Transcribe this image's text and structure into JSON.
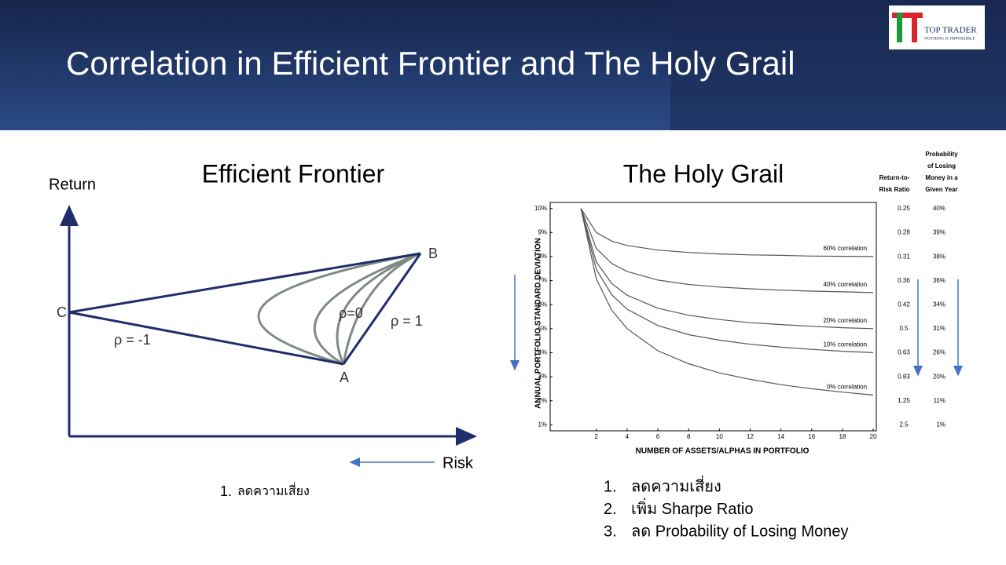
{
  "header": {
    "title": "Correlation in Efficient Frontier and The Holy Grail",
    "logo": {
      "name": "TOP TRADER",
      "tagline": "NOTHING IS IMPOSSIBLE"
    }
  },
  "left": {
    "title": "Efficient Frontier",
    "y_label": "Return",
    "x_label": "Risk",
    "points": {
      "c": "C",
      "a": "A",
      "b": "B"
    },
    "labels": {
      "neg": "ρ = -1",
      "zero": "ρ=0",
      "pos": "ρ = 1"
    },
    "notes": [
      {
        "num": "1.",
        "text": "ลดความเสี่ยง"
      }
    ]
  },
  "chart_data": {
    "type": "line",
    "title": "The Holy Grail",
    "y_label": "ANNUAL PORTFOLIO STANDARD DEVIATION",
    "x_label": "NUMBER OF ASSETS/ALPHAS IN PORTFOLIO",
    "x": [
      1,
      2,
      3,
      4,
      6,
      8,
      10,
      12,
      14,
      16,
      18,
      20
    ],
    "xlim": [
      -1,
      20.2
    ],
    "xticks": [
      2,
      4,
      6,
      8,
      10,
      12,
      14,
      16,
      18,
      20
    ],
    "ylim": [
      0.75,
      10.25
    ],
    "yticks": [
      {
        "value": 1,
        "label": "1%"
      },
      {
        "value": 2,
        "label": "2%"
      },
      {
        "value": 3,
        "label": "3%"
      },
      {
        "value": 4,
        "label": "4%"
      },
      {
        "value": 5,
        "label": "5%"
      },
      {
        "value": 6,
        "label": "6%"
      },
      {
        "value": 7,
        "label": "7%"
      },
      {
        "value": 8,
        "label": "8%"
      },
      {
        "value": 9,
        "label": "9%"
      },
      {
        "value": 10,
        "label": "10%"
      }
    ],
    "series": [
      {
        "name": "60% correlation",
        "color": "#555555",
        "values": [
          10,
          9.0,
          8.64,
          8.46,
          8.27,
          8.17,
          8.11,
          8.07,
          8.05,
          8.02,
          8.01,
          8.0
        ]
      },
      {
        "name": "40% correlation",
        "color": "#555555",
        "values": [
          10,
          8.34,
          7.71,
          7.38,
          7.02,
          6.84,
          6.73,
          6.66,
          6.6,
          6.56,
          6.53,
          6.5
        ]
      },
      {
        "name": "20% correlation",
        "color": "#555555",
        "values": [
          10,
          7.78,
          6.88,
          6.39,
          5.85,
          5.56,
          5.38,
          5.25,
          5.17,
          5.1,
          5.04,
          5.0
        ]
      },
      {
        "name": "10% correlation",
        "color": "#555555",
        "values": [
          10,
          7.47,
          6.41,
          5.81,
          5.13,
          4.75,
          4.52,
          4.35,
          4.23,
          4.14,
          4.06,
          4.0
        ]
      },
      {
        "name": "0% correlation",
        "color": "#555555",
        "values": [
          10,
          7.07,
          5.77,
          5.0,
          4.08,
          3.54,
          3.16,
          2.89,
          2.67,
          2.5,
          2.36,
          2.24
        ]
      }
    ]
  },
  "table": {
    "headers": [
      [
        "Return-to-",
        "Risk Ratio"
      ],
      [
        "Probability",
        "of Losing",
        "Money in a",
        "Given Year"
      ]
    ],
    "rows": [
      [
        "0.25",
        "40%"
      ],
      [
        "0.28",
        "39%"
      ],
      [
        "0.31",
        "38%"
      ],
      [
        "0.36",
        "36%"
      ],
      [
        "0.42",
        "34%"
      ],
      [
        "0.5",
        "31%"
      ],
      [
        "0.63",
        "26%"
      ],
      [
        "0.83",
        "20%"
      ],
      [
        "1.25",
        "11%"
      ],
      [
        "2.5",
        "1%"
      ]
    ]
  },
  "right_notes": [
    {
      "num": "1.",
      "text": "ลดความเสี่ยง"
    },
    {
      "num": "2.",
      "text": "เพิ่ม Sharpe Ratio"
    },
    {
      "num": "3.",
      "text": "ลด Probability of Losing Money"
    }
  ]
}
